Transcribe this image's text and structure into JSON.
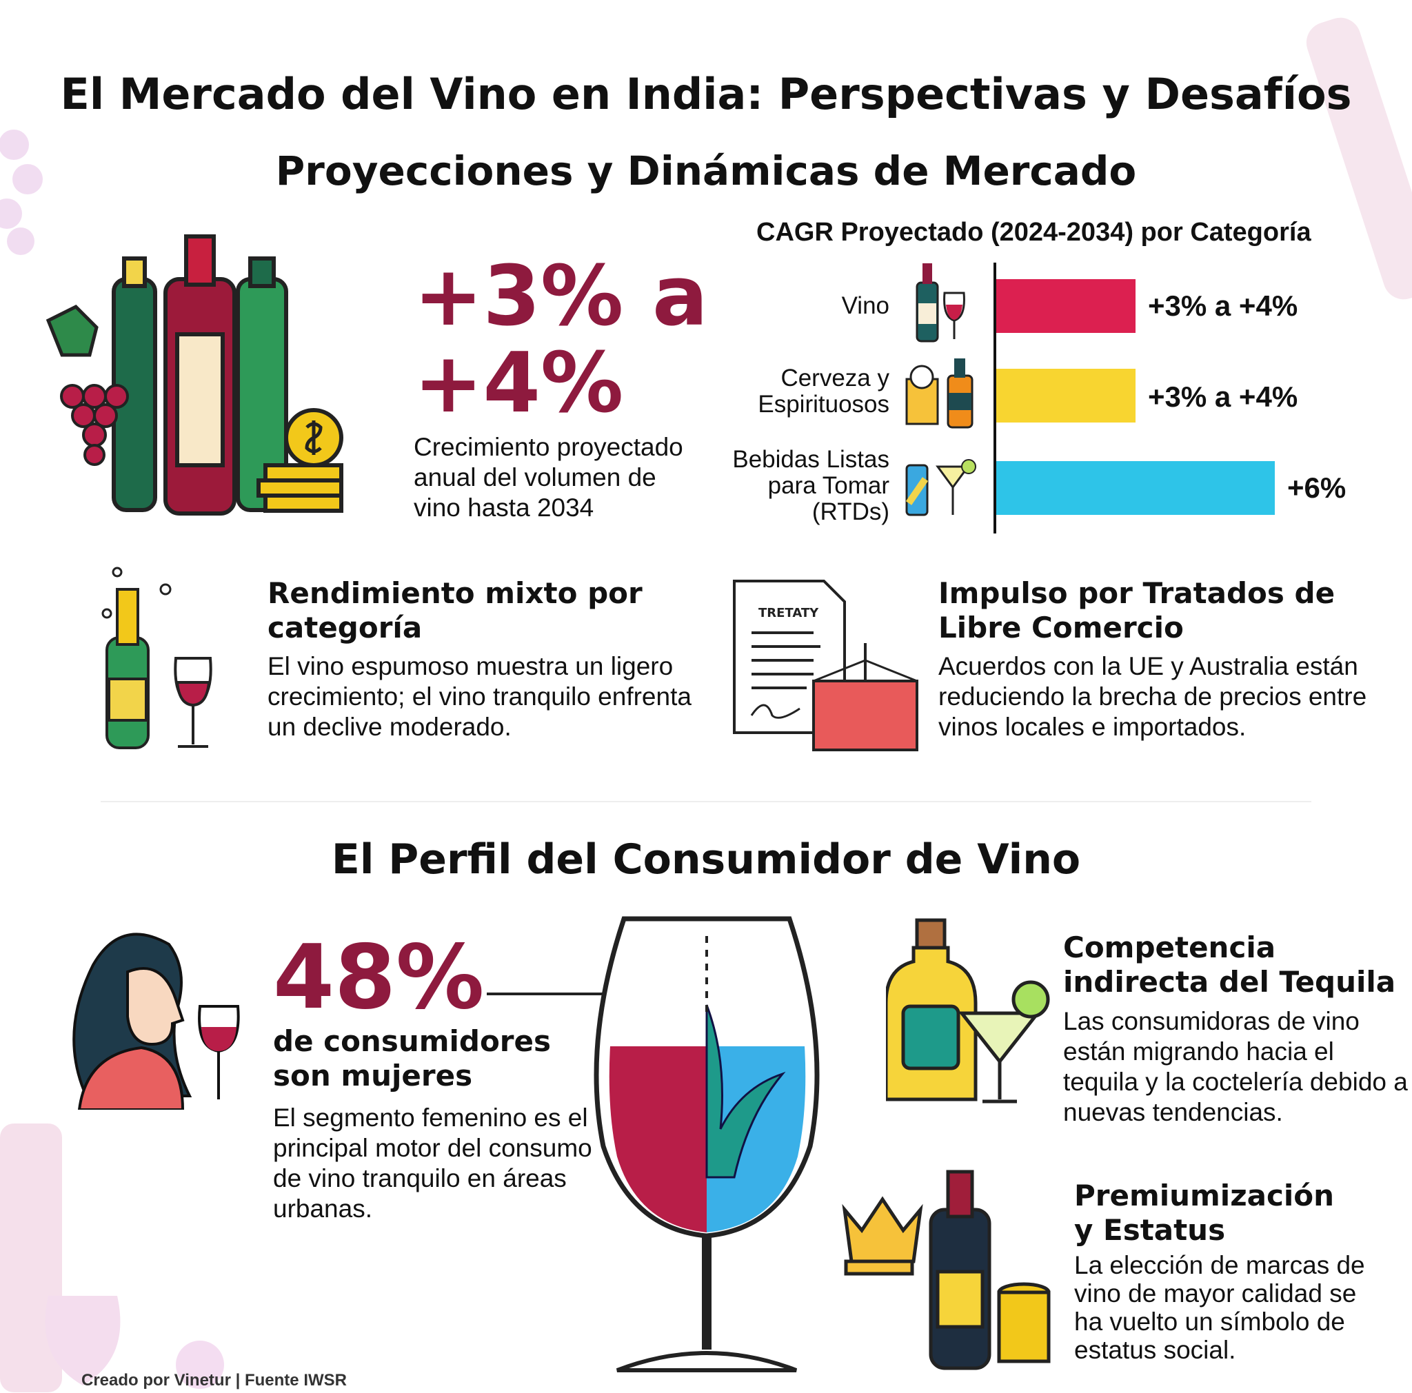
{
  "header": {
    "title": "El Mercado del Vino en India: Perspectivas y Desafíos",
    "subtitle": "Proyecciones y Dinámicas de Mercado"
  },
  "growth": {
    "value": "+3% a +4%",
    "description": "Crecimiento proyectado anual del volumen de vino hasta 2034"
  },
  "chart_data": {
    "type": "bar",
    "orientation": "horizontal",
    "title": "CAGR Proyectado (2024-2034) por Categoría",
    "categories": [
      "Vino",
      "Cerveza y Espirituosos",
      "Bebidas Listas para Tomar (RTDs)"
    ],
    "values": [
      3,
      3,
      6
    ],
    "ranges": [
      [
        3,
        4
      ],
      [
        3,
        4
      ],
      [
        6,
        6
      ]
    ],
    "labels": [
      "+3% a +4%",
      "+3% a +4%",
      "+6%"
    ],
    "colors": [
      "#dc2050",
      "#f8d530",
      "#2ec4e8"
    ],
    "xlim": [
      0,
      6
    ],
    "grid": false,
    "legend": "none"
  },
  "cards": {
    "mixed": {
      "title": "Rendimiento mixto por categoría",
      "body": "El vino espumoso muestra un ligero crecimiento; el vino tranquilo enfrenta un declive moderado."
    },
    "treaty": {
      "title": "Impulso por Tratados de Libre Comercio",
      "body": "Acuerdos con la UE y Australia están reduciendo la brecha de precios entre vinos locales e importados.",
      "doc_label": "TRETATY"
    }
  },
  "consumer": {
    "heading": "El Perfil del Consumidor de Vino",
    "stat": "48%",
    "stat_label": "de consumidores son mujeres",
    "stat_body": "El segmento femenino es el principal motor del consumo de vino tranquilo en áreas urbanas.",
    "tequila": {
      "title": "Competencia indirecta del Tequila",
      "body": "Las consumidoras de vino están migrando hacia el tequila y la coctelería debido a nuevas tendencias."
    },
    "premium": {
      "title": "Premiumización y Estatus",
      "body": "La elección de marcas de vino de mayor calidad se ha vuelto un símbolo de estatus social."
    }
  },
  "footer": {
    "credit": "Creado por Vinetur | Fuente IWSR"
  },
  "colors": {
    "accent": "#8e1a3e"
  }
}
